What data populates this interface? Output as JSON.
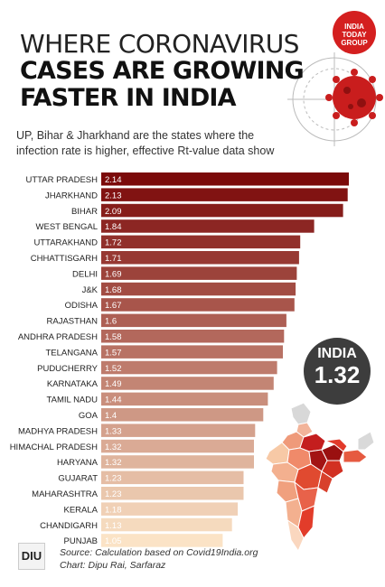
{
  "brand": {
    "logo_line1": "INDIA",
    "logo_line2": "TODAY",
    "logo_line3": "GROUP",
    "diu_logo": "DIU"
  },
  "header": {
    "title_line1": "WHERE CORONAVIRUS",
    "title_line2": "CASES ARE GROWING",
    "title_line3": "FASTER IN INDIA",
    "subtitle": "UP, Bihar & Jharkhand are the states where the infection rate is higher, effective Rt-value data show"
  },
  "callout": {
    "label": "INDIA",
    "value": "1.32"
  },
  "footer": {
    "source": "Source: Calculation based on Covid19India.org",
    "credit": "Chart: Dipu Rai, Sarfaraz"
  },
  "colors": {
    "accent": "#d41f1f",
    "bar_dark": "#7b0a0a",
    "bar_light": "#fbe3c6",
    "bubble": "#3d3d3d"
  },
  "chart_data": {
    "type": "bar",
    "orientation": "horizontal",
    "categories": [
      "UTTAR PRADESH",
      "JHARKHAND",
      "BIHAR",
      "WEST BENGAL",
      "UTTARAKHAND",
      "CHHATTISGARH",
      "DELHI",
      "J&K",
      "ODISHA",
      "RAJASTHAN",
      "ANDHRA PRADESH",
      "TELANGANA",
      "PUDUCHERRY",
      "KARNATAKA",
      "TAMIL NADU",
      "GOA",
      "MADHYA PRADESH",
      "HIMACHAL PRADESH",
      "HARYANA",
      "GUJARAT",
      "MAHARASHTRA",
      "KERALA",
      "CHANDIGARH",
      "PUNJAB"
    ],
    "values": [
      2.14,
      2.13,
      2.09,
      1.84,
      1.72,
      1.71,
      1.69,
      1.68,
      1.67,
      1.6,
      1.58,
      1.57,
      1.52,
      1.49,
      1.44,
      1.4,
      1.33,
      1.32,
      1.32,
      1.23,
      1.23,
      1.18,
      1.13,
      1.05
    ],
    "labels": [
      "2.14",
      "2.13",
      "2.09",
      "1.84",
      "1.72",
      "1.71",
      "1.69",
      "1.68",
      "1.67",
      "1.6",
      "1.58",
      "1.57",
      "1.52",
      "1.49",
      "1.44",
      "1.4",
      "1.33",
      "1.32",
      "1.32",
      "1.23",
      "1.23",
      "1.18",
      "1.13",
      "1.05"
    ],
    "xlim": [
      0,
      2.14
    ],
    "grid": false,
    "legend": "none"
  }
}
